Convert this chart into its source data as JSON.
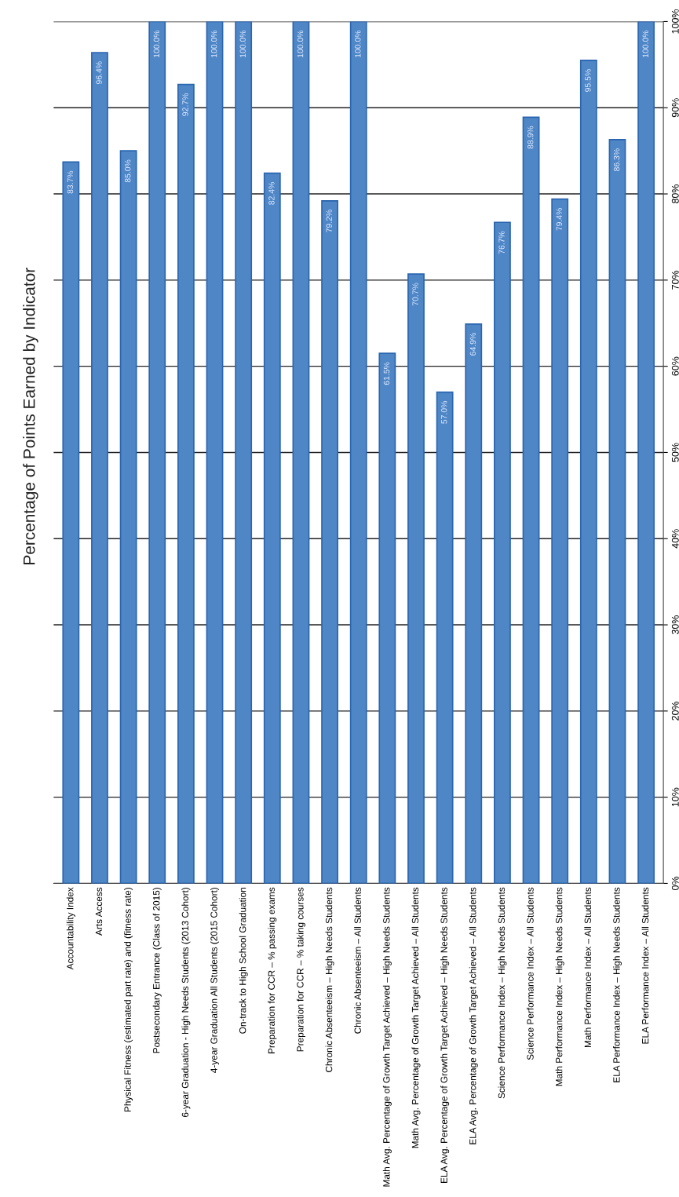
{
  "chart_data": {
    "type": "bar",
    "title": "Percentage of Points Earned by Indicator",
    "categories": [
      "Accountability Index",
      "Arts Access",
      "Physical Fitness (estimated part rate) and (fitness rate)",
      "Postsecondary Entrance (Class of 2015)",
      "6-year Graduation - High Needs Students (2013 Cohort)",
      "4-year Graduation All Students (2015 Cohort)",
      "On-track to High School Graduation",
      "Preparation for CCR – % passing exams",
      "Preparation for CCR – % taking courses",
      "Chronic Absenteeism – High Needs Students",
      "Chronic Absenteeism – All Students",
      "Math Avg. Percentage of Growth Target Achieved – High Needs Students",
      "Math Avg. Percentage of Growth Target Achieved – All Students",
      "ELA Avg. Percentage of Growth Target Achieved – High Needs Students",
      "ELA Avg. Percentage of Growth Target Achieved – All Students",
      "Science Performance Index – High Needs Students",
      "Science Performance Index – All Students",
      "Math Performance Index – High Needs Students",
      "Math Performance Index – All Students",
      "ELA Performance Index – High Needs Students",
      "ELA Performance Index – All Students"
    ],
    "values": [
      83.7,
      96.4,
      85.0,
      100,
      92.7,
      100,
      100,
      82.4,
      100,
      79.2,
      100,
      61.5,
      70.7,
      57.0,
      64.9,
      76.7,
      88.9,
      79.4,
      95.5,
      86.3,
      100
    ],
    "value_labels": [
      "83.7%",
      "96.4%",
      "85.0%",
      "100.0%",
      "92.7%",
      "100.0%",
      "100.0%",
      "82.4%",
      "100.0%",
      "79.2%",
      "100.0%",
      "61.5%",
      "70.7%",
      "57.0%",
      "64.9%",
      "76.7%",
      "88.9%",
      "79.4%",
      "95.5%",
      "86.3%",
      "100.0%"
    ],
    "color": "#4f86c6",
    "ylim": [
      0,
      100
    ],
    "yticks": [
      {
        "value": 0,
        "label": "0%"
      },
      {
        "value": 10,
        "label": "10%"
      },
      {
        "value": 20,
        "label": "20%"
      },
      {
        "value": 30,
        "label": "30%"
      },
      {
        "value": 40,
        "label": "40%"
      },
      {
        "value": 50,
        "label": "50%"
      },
      {
        "value": 60,
        "label": "60%"
      },
      {
        "value": 70,
        "label": "70%"
      },
      {
        "value": 80,
        "label": "80%"
      },
      {
        "value": 90,
        "label": "90%"
      },
      {
        "value": 100,
        "label": "100%"
      }
    ],
    "grid": "y"
  }
}
